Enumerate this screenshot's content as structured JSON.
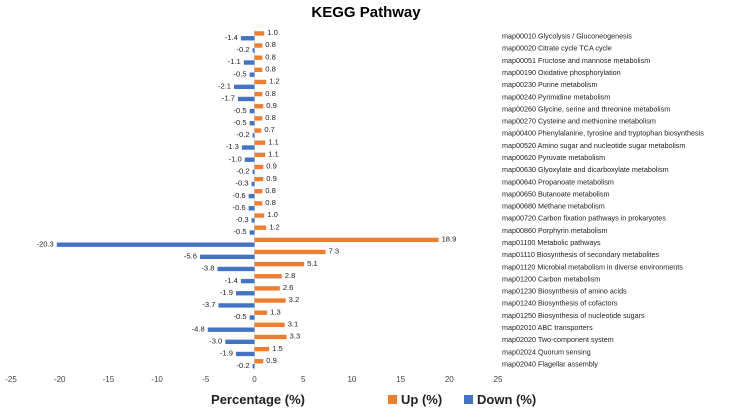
{
  "chart_data": {
    "type": "bar",
    "orientation": "horizontal",
    "title": "KEGG Pathway",
    "xlabel": "Percentage  (%)",
    "ylabel": "",
    "xlim": [
      -25,
      25
    ],
    "x_ticks": [
      -25,
      -20,
      -15,
      -10,
      -5,
      0,
      5,
      10,
      15,
      20,
      25
    ],
    "grid": false,
    "legend_position": "bottom-right",
    "categories": [
      "map00010 Glycolysis / Gluconeogenesis",
      "map00020 Citrate cycle TCA cycle",
      "map00051 Fructose and mannose metabolism",
      "map00190 Oxidative phosphorylation",
      "map00230 Purine metabolism",
      "map00240 Pyrimidine metabolism",
      "map00260 Glycine, serine and threonine metabolism",
      "map00270 Cysteine and methionine metabolism",
      "map00400 Phenylalanine, tyrosine and tryptophan biosynthesis",
      "map00520 Amino sugar and nucleotide sugar metabolism",
      "map00620 Pyruvate metabolism",
      "map00630 Glyoxylate and dicarboxylate metabolism",
      "map00640 Propanoate metabolism",
      "map00650 Butanoate metabolism",
      "map00680 Methane metabolism",
      "map00720 Carbon fixation pathways in prokaryotes",
      "map00860 Porphyrin metabolism",
      "map01100 Metabolic pathways",
      "map01110 Biosynthesis of secondary metabolites",
      "map01120 Microbial metabolism in diverse environments",
      "map01200 Carbon metabolism",
      "map01230 Biosynthesis of amino acids",
      "map01240 Biosynthesis of cofactors",
      "map01250 Biosynthesis of nucleotide sugars",
      "map02010 ABC transporters",
      "map02020 Two-component system",
      "map02024 Quorum sensing",
      "map02040 Flagellar assembly"
    ],
    "series": [
      {
        "name": "Up (%)",
        "color": "#ED7D31",
        "values": [
          1.0,
          0.8,
          0.8,
          0.8,
          1.2,
          0.8,
          0.9,
          0.8,
          0.7,
          1.1,
          1.1,
          0.9,
          0.9,
          0.8,
          0.8,
          1.0,
          1.2,
          18.9,
          7.3,
          5.1,
          2.8,
          2.6,
          3.2,
          1.3,
          3.1,
          3.3,
          1.5,
          0.9
        ],
        "labels": [
          "1.0",
          "0.8",
          "0.8",
          "0.8",
          "1.2",
          "0.8",
          "0.9",
          "0.8",
          "0.7",
          "1.1",
          "1.1",
          "0.9",
          "0.9",
          "0.8",
          "0.8",
          "1.0",
          "1.2",
          "18.9",
          "7.3",
          "5.1",
          "2.8",
          "2.6",
          "3.2",
          "1.3",
          "3.1",
          "3.3",
          "1.5",
          "0.9"
        ]
      },
      {
        "name": "Down (%)",
        "color": "#4472C4",
        "values": [
          -1.4,
          -0.2,
          -1.1,
          -0.5,
          -2.1,
          -1.7,
          -0.5,
          -0.5,
          -0.2,
          -1.3,
          -1.0,
          -0.2,
          -0.3,
          -0.6,
          -0.6,
          -0.3,
          -0.5,
          -20.3,
          -5.6,
          -3.8,
          -1.4,
          -1.9,
          -3.7,
          -0.5,
          -4.8,
          -3.0,
          -1.9,
          -0.2
        ],
        "labels": [
          "-1.4",
          "-0.2",
          "-1.1",
          "-0.5",
          "-2.1",
          "-1.7",
          "-0.5",
          "-0.5",
          "-0.2",
          "-1.3",
          "-1.0",
          "-0.2",
          "-0.3",
          "-0.6",
          "-0.6",
          "-0.3",
          "-0.5",
          "-20.3",
          "-5.6",
          "-3.8",
          "-1.4",
          "-1.9",
          "-3.7",
          "-0.5",
          "-4.8",
          "-3.0",
          "-1.9",
          "-0.2"
        ]
      }
    ]
  }
}
